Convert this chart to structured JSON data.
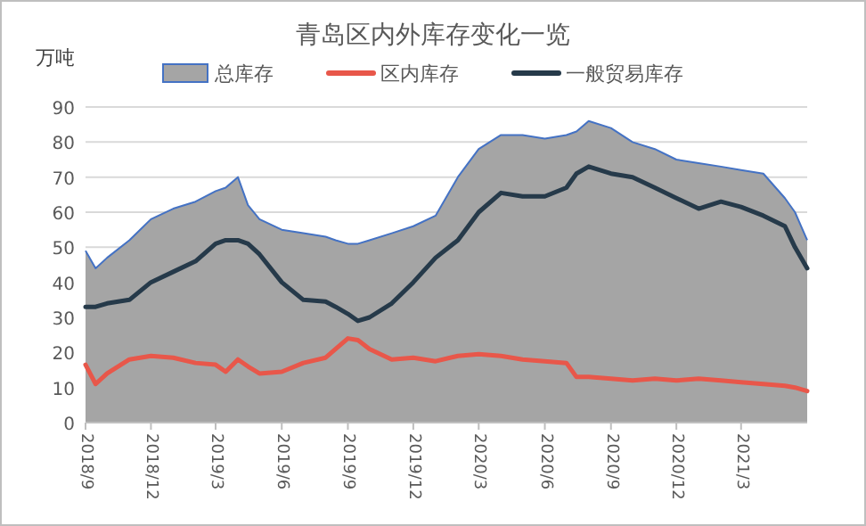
{
  "chart_data": {
    "type": "line",
    "title": "青岛区内外库存变化一览",
    "ylabel": "万吨",
    "x": [
      "2018-09-01",
      "2018-09-15",
      "2018-10-01",
      "2018-11-01",
      "2018-12-01",
      "2019-01-01",
      "2019-02-01",
      "2019-03-01",
      "2019-03-15",
      "2019-04-01",
      "2019-04-15",
      "2019-05-01",
      "2019-06-01",
      "2019-07-01",
      "2019-08-01",
      "2019-08-15",
      "2019-09-01",
      "2019-09-15",
      "2019-10-01",
      "2019-11-01",
      "2019-12-01",
      "2020-01-01",
      "2020-02-01",
      "2020-03-01",
      "2020-04-01",
      "2020-05-01",
      "2020-06-01",
      "2020-07-01",
      "2020-07-15",
      "2020-08-01",
      "2020-09-01",
      "2020-10-01",
      "2020-11-01",
      "2020-12-01",
      "2021-01-01",
      "2021-02-01",
      "2021-03-01",
      "2021-04-01",
      "2021-05-01",
      "2021-05-15",
      "2021-06-01"
    ],
    "series": [
      {
        "name": "总库存",
        "type": "area",
        "color": "#a5a5a5",
        "values": [
          49,
          44,
          47,
          52,
          58,
          61,
          63,
          66,
          67,
          70,
          62,
          58,
          55,
          54,
          53,
          52,
          51,
          51,
          52,
          54,
          56,
          59,
          70,
          78,
          82,
          82,
          81,
          82,
          83,
          86,
          84,
          80,
          78,
          75,
          74,
          73,
          72,
          71,
          64,
          60,
          52
        ]
      },
      {
        "name": "区内库存",
        "color": "#e8574a",
        "values": [
          16.5,
          11,
          14,
          18,
          19,
          18.5,
          17,
          16.5,
          14.5,
          18,
          16,
          14,
          14.5,
          17,
          18.5,
          21,
          24,
          23.5,
          21,
          18,
          18.5,
          17.5,
          19,
          19.5,
          19,
          18,
          17.5,
          17,
          13,
          13,
          12.5,
          12,
          12.5,
          12,
          12.5,
          12,
          11.5,
          11,
          10.5,
          10,
          9
        ]
      },
      {
        "name": "一般贸易库存",
        "color": "#263a4a",
        "values": [
          33,
          33,
          34,
          35,
          40,
          43,
          46,
          51,
          52,
          52,
          51,
          48,
          40,
          35,
          34.5,
          33,
          31,
          29,
          30,
          34,
          40,
          47,
          52,
          60,
          65.5,
          64.5,
          64.5,
          67,
          71,
          73,
          71,
          70,
          67,
          64,
          61,
          63,
          61.5,
          59,
          56,
          50,
          44
        ]
      }
    ],
    "xlim": [
      "2018-09-01",
      "2021-06-01"
    ],
    "xticks": [
      {
        "value": "2018-09-01",
        "label": "2018/9"
      },
      {
        "value": "2018-12-01",
        "label": "2018/12"
      },
      {
        "value": "2019-03-01",
        "label": "2019/3"
      },
      {
        "value": "2019-06-01",
        "label": "2019/6"
      },
      {
        "value": "2019-09-01",
        "label": "2019/9"
      },
      {
        "value": "2019-12-01",
        "label": "2019/12"
      },
      {
        "value": "2020-03-01",
        "label": "2020/3"
      },
      {
        "value": "2020-06-01",
        "label": "2020/6"
      },
      {
        "value": "2020-09-01",
        "label": "2020/9"
      },
      {
        "value": "2020-12-01",
        "label": "2020/12"
      },
      {
        "value": "2021-03-01",
        "label": "2021/3"
      }
    ],
    "ylim": [
      0,
      90
    ],
    "yticks": [
      0,
      10,
      20,
      30,
      40,
      50,
      60,
      70,
      80,
      90
    ],
    "grid": "y",
    "legend": "top"
  }
}
